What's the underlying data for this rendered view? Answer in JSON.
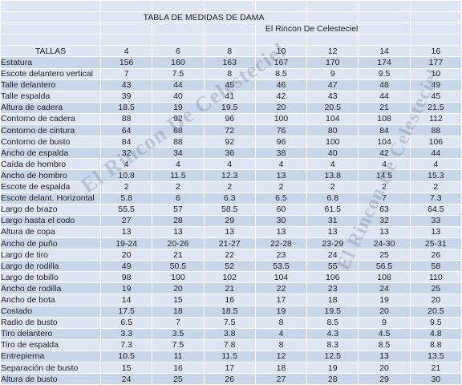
{
  "title": "TABLA DE MEDIDAS DE DAMA",
  "author": "El Rincon De Celesteciel",
  "watermark": "El Rincon De Celesteciel",
  "tallas_label": "TALLAS",
  "sizes": [
    "4",
    "6",
    "8",
    "10",
    "12",
    "14",
    "16"
  ],
  "rows": [
    {
      "label": "Estatura",
      "values": [
        "156",
        "160",
        "163",
        "167",
        "170",
        "174",
        "177"
      ]
    },
    {
      "label": " Escote delantero vertical",
      "values": [
        "7",
        "7.5",
        "8",
        "8.5",
        "9",
        "9.5",
        "10"
      ]
    },
    {
      "label": "Talle delantero",
      "values": [
        "43",
        "44",
        "45",
        "46",
        "47",
        "48",
        "49"
      ]
    },
    {
      "label": " Talle espalda",
      "values": [
        "39",
        "40",
        "41",
        "42",
        "43",
        "44",
        "45"
      ]
    },
    {
      "label": "Altura de cadera",
      "values": [
        "18.5",
        "19",
        "19.5",
        "20",
        "20.5",
        "21",
        "21.5"
      ]
    },
    {
      "label": "Contorno de cadera",
      "values": [
        "88",
        "92",
        "96",
        "100",
        "104",
        "108",
        "112"
      ]
    },
    {
      "label": "Contorno de cintura",
      "values": [
        "64",
        "68",
        "72",
        "76",
        "80",
        "84",
        "88"
      ]
    },
    {
      "label": "Contorno de busto",
      "values": [
        "84",
        "88",
        "92",
        "96",
        "100",
        "104",
        "106"
      ]
    },
    {
      "label": "Ancho de espalda",
      "values": [
        "32",
        "34",
        "36",
        "38",
        "40",
        "42",
        "44"
      ]
    },
    {
      "label": "Caída de hombro",
      "values": [
        "4",
        "4",
        "4",
        "4",
        "4",
        "4",
        "4"
      ]
    },
    {
      "label": "Ancho de hombro",
      "values": [
        "10.8",
        "11.5",
        "12.3",
        "13",
        "13.8",
        "14.5",
        "15.3"
      ]
    },
    {
      "label": "Escote de espalda",
      "values": [
        "2",
        "2",
        "2",
        "2",
        "2",
        "2",
        "2"
      ]
    },
    {
      "label": "Escote delant. Horizontal",
      "values": [
        "5.8",
        "6",
        "6.3",
        "6.5",
        "6.8",
        "7",
        "7.3"
      ]
    },
    {
      "label": "Largo de brazo",
      "values": [
        "55.5",
        "57",
        "58.5",
        "60",
        "61.5",
        "63",
        "64.5"
      ]
    },
    {
      "label": "Largo hasta el codo",
      "values": [
        "27",
        "28",
        "29",
        "30",
        "31",
        "32",
        "33"
      ]
    },
    {
      "label": "Altura de copa",
      "values": [
        "13",
        "13",
        "13",
        "13",
        "13",
        "13",
        "13"
      ]
    },
    {
      "label": "Ancho de puño",
      "values": [
        "19-24",
        "20-26",
        "21-27",
        "22-28",
        "23-29",
        "24-30",
        "25-31"
      ]
    },
    {
      "label": "Largo de tiro",
      "values": [
        "20",
        "21",
        "22",
        "23",
        "24",
        "25",
        "26"
      ]
    },
    {
      "label": "Largo de rodilla",
      "values": [
        "49",
        "50.5",
        "52",
        "53.5",
        "55",
        "56.5",
        "58"
      ]
    },
    {
      "label": "Largo de tobillo",
      "values": [
        "98",
        "100",
        "102",
        "104",
        "106",
        "108",
        "110"
      ]
    },
    {
      "label": "Ancho de rodilla",
      "values": [
        "19",
        "20",
        "21",
        "22",
        "23",
        "24",
        "25"
      ]
    },
    {
      "label": "Ancho de bota",
      "values": [
        "14",
        "15",
        "16",
        "17",
        "18",
        "19",
        "20"
      ]
    },
    {
      "label": "Costado",
      "values": [
        "17.5",
        "18",
        "18.5",
        "19",
        "19.5",
        "20",
        "20.5"
      ]
    },
    {
      "label": "Radio de busto",
      "values": [
        "6.5",
        "7",
        "7.5",
        "8",
        "8.5",
        "9",
        "9.5"
      ]
    },
    {
      "label": "Tiro delantero",
      "values": [
        "3.3",
        "3.5",
        "3.8",
        "4",
        "4.3",
        "4.5",
        "4.8"
      ]
    },
    {
      "label": "Tiro de espalda",
      "values": [
        "7.3",
        "7.5",
        "7.8",
        "8",
        "8.3",
        "8.5",
        "8.8"
      ]
    },
    {
      "label": "Entrepierna",
      "values": [
        "10.5",
        "11",
        "11.5",
        "12",
        "12.5",
        "13",
        "13.5"
      ]
    },
    {
      "label": "Separación de busto",
      "values": [
        "15",
        "16",
        "17",
        "18",
        "19",
        "20",
        "21"
      ]
    },
    {
      "label": "Altura de busto",
      "values": [
        "24",
        "25",
        "26",
        "27",
        "28",
        "29",
        "30"
      ]
    }
  ]
}
